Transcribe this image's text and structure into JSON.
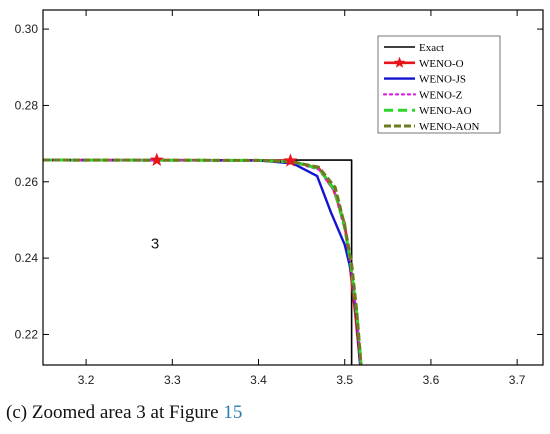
{
  "caption": {
    "label": "(c)",
    "text": "Zoomed area 3 at Figure",
    "ref": "15"
  },
  "chart_data": {
    "type": "line",
    "title": "",
    "xlabel": "",
    "ylabel": "",
    "xlim": [
      3.15,
      3.73
    ],
    "ylim": [
      0.212,
      0.305
    ],
    "xticks": [
      3.2,
      3.3,
      3.4,
      3.5,
      3.6,
      3.7
    ],
    "xtick_labels": [
      "3.2",
      "3.3",
      "3.4",
      "3.5",
      "3.6",
      "3.7"
    ],
    "yticks": [
      0.22,
      0.24,
      0.26,
      0.28,
      0.3
    ],
    "ytick_labels": [
      "0.22",
      "0.24",
      "0.26",
      "0.28",
      "0.30"
    ],
    "grid": false,
    "legend_position": "top-right",
    "annotation": {
      "text": "3",
      "x": 3.28,
      "y": 0.2425
    },
    "series": [
      {
        "name": "Exact",
        "color": "#000000",
        "style": "solid",
        "x": [
          3.15,
          3.4,
          3.503,
          3.503,
          3.508,
          3.508
        ],
        "y": [
          0.2657,
          0.2657,
          0.2657,
          0.2657,
          0.2657,
          0.212
        ]
      },
      {
        "name": "WENO-O",
        "color": "#e8161b",
        "style": "solid",
        "marker": "star",
        "marker_x": [
          3.282,
          3.437
        ],
        "marker_y": [
          0.2657,
          0.2655
        ],
        "x": [
          3.15,
          3.282,
          3.4,
          3.437,
          3.47,
          3.487,
          3.5,
          3.505,
          3.512,
          3.518
        ],
        "y": [
          0.2657,
          0.2657,
          0.2656,
          0.2655,
          0.2635,
          0.258,
          0.249,
          0.24,
          0.226,
          0.212
        ]
      },
      {
        "name": "WENO-JS",
        "color": "#1414d0",
        "style": "solid",
        "x": [
          3.15,
          3.4,
          3.44,
          3.468,
          3.484,
          3.5,
          3.508,
          3.514,
          3.518
        ],
        "y": [
          0.2657,
          0.2656,
          0.2648,
          0.2615,
          0.252,
          0.2435,
          0.236,
          0.224,
          0.212
        ]
      },
      {
        "name": "WENO-Z",
        "color": "#e020e0",
        "style": "dotted",
        "x": [
          3.15,
          3.4,
          3.44,
          3.47,
          3.488,
          3.5,
          3.507,
          3.514,
          3.519
        ],
        "y": [
          0.2657,
          0.2656,
          0.2651,
          0.2632,
          0.2575,
          0.2475,
          0.238,
          0.225,
          0.212
        ]
      },
      {
        "name": "WENO-AO",
        "color": "#2cd62c",
        "style": "dashed",
        "x": [
          3.15,
          3.4,
          3.44,
          3.47,
          3.488,
          3.5,
          3.507,
          3.514,
          3.519
        ],
        "y": [
          0.2657,
          0.2656,
          0.2652,
          0.2635,
          0.258,
          0.248,
          0.2385,
          0.2255,
          0.212
        ]
      },
      {
        "name": "WENO-AON",
        "color": "#6e7a1e",
        "style": "dashed",
        "x": [
          3.15,
          3.4,
          3.44,
          3.47,
          3.489,
          3.5,
          3.508,
          3.514,
          3.519
        ],
        "y": [
          0.2657,
          0.2656,
          0.2652,
          0.2638,
          0.2585,
          0.2485,
          0.2385,
          0.226,
          0.212
        ]
      }
    ]
  }
}
